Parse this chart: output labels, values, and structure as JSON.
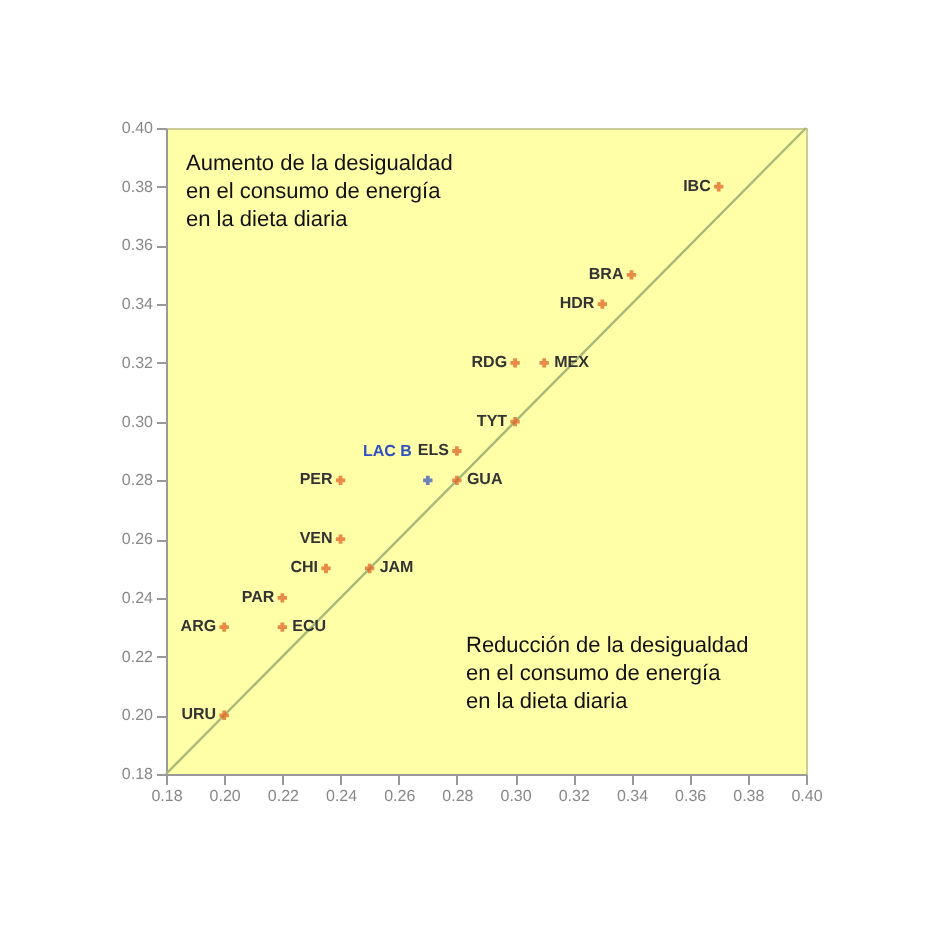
{
  "chart_data": {
    "type": "scatter",
    "xlim": [
      0.18,
      0.4
    ],
    "ylim": [
      0.18,
      0.4
    ],
    "xticks": [
      0.18,
      {
        "value": 0.2,
        "label": "0.20"
      },
      0.22,
      0.24,
      0.26,
      0.28,
      {
        "value": 0.3,
        "label": "0.30"
      },
      0.32,
      0.34,
      0.36,
      0.38,
      {
        "value": 0.4,
        "label": "0.40"
      }
    ],
    "yticks": [
      0.18,
      {
        "value": 0.2,
        "label": "0.20"
      },
      0.22,
      0.24,
      0.26,
      0.28,
      {
        "value": 0.3,
        "label": "0.30"
      },
      0.32,
      0.34,
      0.36,
      0.38,
      {
        "value": 0.4,
        "label": "0.40"
      }
    ],
    "grid": false,
    "marker": "cross",
    "annotations": [
      "Aumento de la desigualdad\nen el consumo de energía\nen la dieta diaria",
      "Reducción de la desigualdad\nen el consumo de energía\nen la dieta diaria"
    ],
    "series": [
      {
        "type": "line",
        "marker": "none",
        "x": [
          0.18,
          0.4
        ],
        "values": [
          0.18,
          0.4
        ],
        "color": "#a8b878"
      },
      {
        "name": "IBC",
        "x": [
          0.37
        ],
        "values": [
          0.38
        ],
        "color": "#e05a1e"
      },
      {
        "name": "BRA",
        "x": [
          0.34
        ],
        "values": [
          0.35
        ],
        "color": "#e05a1e"
      },
      {
        "name": "HDR",
        "x": [
          0.33
        ],
        "values": [
          0.34
        ],
        "color": "#e05a1e"
      },
      {
        "name": "MEX",
        "x": [
          0.31
        ],
        "values": [
          0.32
        ],
        "color": "#e05a1e"
      },
      {
        "name": "RDG",
        "x": [
          0.3
        ],
        "values": [
          0.32
        ],
        "color": "#e05a1e"
      },
      {
        "name": "TYT",
        "x": [
          0.3
        ],
        "values": [
          0.3
        ],
        "color": "#e05a1e"
      },
      {
        "name": "ELS",
        "x": [
          0.28
        ],
        "values": [
          0.29
        ],
        "color": "#e05a1e"
      },
      {
        "name": "LAC B",
        "x": [
          0.27
        ],
        "values": [
          0.28
        ],
        "color": "#3050c0"
      },
      {
        "name": "PER",
        "x": [
          0.24
        ],
        "values": [
          0.28
        ],
        "color": "#e05a1e"
      },
      {
        "name": "GUA",
        "x": [
          0.28
        ],
        "values": [
          0.28
        ],
        "color": "#e05a1e"
      },
      {
        "name": "VEN",
        "x": [
          0.24
        ],
        "values": [
          0.26
        ],
        "color": "#e05a1e"
      },
      {
        "name": "CHI",
        "x": [
          0.235
        ],
        "values": [
          0.25
        ],
        "color": "#e05a1e"
      },
      {
        "name": "JAM",
        "x": [
          0.25
        ],
        "values": [
          0.25
        ],
        "color": "#e05a1e"
      },
      {
        "name": "PAR",
        "x": [
          0.22
        ],
        "values": [
          0.24
        ],
        "color": "#e05a1e"
      },
      {
        "name": "ARG",
        "x": [
          0.2
        ],
        "values": [
          0.23
        ],
        "color": "#e05a1e"
      },
      {
        "name": "ECU",
        "x": [
          0.22
        ],
        "values": [
          0.23
        ],
        "color": "#e05a1e"
      },
      {
        "name": "URU",
        "x": [
          0.2
        ],
        "values": [
          0.2
        ],
        "color": "#e05a1e"
      }
    ]
  }
}
